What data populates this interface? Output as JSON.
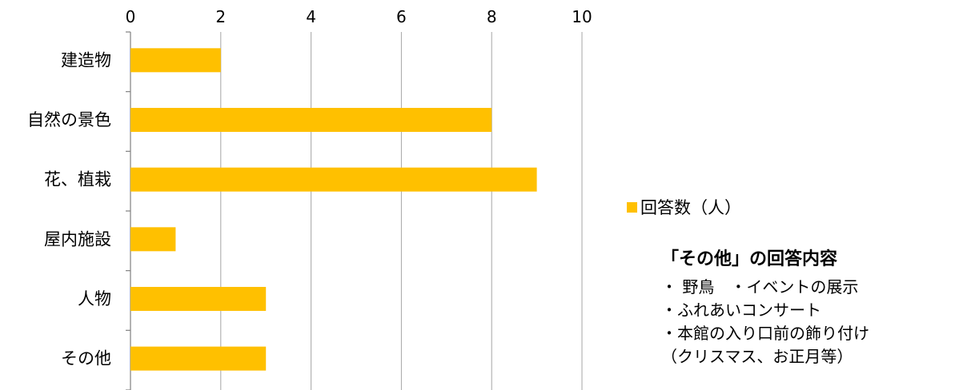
{
  "chart_data": {
    "type": "bar",
    "orientation": "horizontal",
    "categories": [
      "建造物",
      "自然の景色",
      "花、植栽",
      "屋内施設",
      "人物",
      "その他"
    ],
    "series": [
      {
        "name": "回答数（人）",
        "values": [
          2,
          8,
          9,
          1,
          3,
          3
        ],
        "color": "#FFC000"
      }
    ],
    "xlim": [
      0,
      10
    ],
    "x_ticks": [
      0,
      2,
      4,
      6,
      8,
      10
    ],
    "x_axis_position": "top",
    "grid": true,
    "legend_position": "right"
  },
  "legend": {
    "label": "回答数（人）",
    "color": "#FFC000"
  },
  "note": {
    "title": "「その他」の回答内容",
    "lines": [
      "・ 野鳥　・イベントの展示",
      "・ふれあいコンサート",
      "・本館の入り口前の飾り付け",
      "（クリスマス、お正月等）"
    ]
  }
}
